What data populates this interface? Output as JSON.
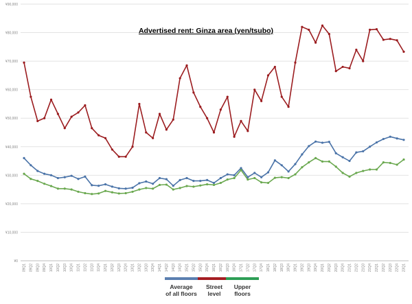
{
  "chart_data": {
    "type": "line",
    "title": "Advertised rent: Ginza area (yen/tsubo)",
    "xlabel": "",
    "ylabel": "",
    "ylim": [
      0,
      90000
    ],
    "yticks": [
      "¥0",
      "¥10,000",
      "¥20,000",
      "¥30,000",
      "¥40,000",
      "¥50,000",
      "¥60,000",
      "¥70,000",
      "¥80,000",
      "¥90,000"
    ],
    "grid": true,
    "legend": "bottom",
    "categories": [
      "09Q1",
      "09Q2",
      "09Q3",
      "09Q4",
      "10Q1",
      "10Q2",
      "10Q3",
      "10Q4",
      "11Q1",
      "11Q2",
      "11Q3",
      "11Q4",
      "12Q1",
      "12Q2",
      "12Q3",
      "12Q4",
      "13Q1",
      "13Q2",
      "13Q3",
      "13Q4",
      "14Q1",
      "14Q2",
      "14Q3",
      "14Q4",
      "15Q1",
      "15Q2",
      "15Q3",
      "15Q4",
      "16Q1",
      "16Q2",
      "16Q3",
      "16Q4",
      "17Q1",
      "17Q2",
      "17Q3",
      "17Q4",
      "18Q1",
      "18Q2",
      "18Q3",
      "18Q4",
      "19Q1",
      "19Q2",
      "19Q3",
      "19Q4",
      "20Q1",
      "20Q2",
      "20Q3",
      "20Q4",
      "21Q1",
      "21Q2",
      "21Q3",
      "21Q4",
      "22Q1",
      "22Q2",
      "22Q3",
      "22Q4",
      "23Q1"
    ],
    "series": [
      {
        "name": "Average of all floors",
        "color": "#4a73a8",
        "values": [
          36000,
          33500,
          31500,
          30500,
          30000,
          29000,
          29300,
          29800,
          28700,
          29500,
          26500,
          26300,
          26800,
          26000,
          25400,
          25300,
          25600,
          27200,
          27800,
          27000,
          29000,
          28600,
          26300,
          28300,
          29000,
          28000,
          28000,
          28300,
          27300,
          29000,
          30300,
          30000,
          32500,
          29300,
          30800,
          29300,
          31000,
          35200,
          33500,
          31300,
          33900,
          37300,
          40200,
          41800,
          41400,
          41700,
          37700,
          36300,
          35000,
          38000,
          38400,
          40000,
          41500,
          42700,
          43500,
          42900,
          42400
        ]
      },
      {
        "name": "Street level",
        "color": "#9b1c1f",
        "values": [
          69500,
          57500,
          49000,
          50000,
          56500,
          51500,
          46500,
          50500,
          52000,
          54500,
          46500,
          44000,
          43000,
          39000,
          36500,
          36500,
          40000,
          55000,
          45000,
          43000,
          51500,
          46000,
          49500,
          64000,
          68500,
          59000,
          54000,
          50000,
          45000,
          53000,
          57500,
          43500,
          49000,
          45500,
          60000,
          56000,
          65000,
          68000,
          57500,
          54000,
          69500,
          82000,
          81000,
          76500,
          82500,
          79500,
          66500,
          68000,
          67500,
          74000,
          70000,
          81000,
          81200,
          77500,
          77800,
          77300,
          73300
        ]
      },
      {
        "name": "Upper floors",
        "color": "#6aa84f",
        "values": [
          30500,
          28700,
          28000,
          27000,
          26200,
          25300,
          25300,
          25000,
          24200,
          23700,
          23400,
          23600,
          24500,
          24000,
          23600,
          23700,
          24200,
          25000,
          25500,
          25300,
          26600,
          26700,
          25000,
          25500,
          26200,
          26000,
          26400,
          26800,
          26600,
          27300,
          28500,
          29000,
          31800,
          28500,
          29000,
          27500,
          27300,
          29100,
          29300,
          29000,
          30300,
          32800,
          34500,
          36000,
          34800,
          34800,
          33000,
          30800,
          29500,
          30800,
          31500,
          32000,
          32000,
          34500,
          34300,
          33700,
          35500
        ]
      }
    ],
    "legend_labels": [
      {
        "line1": "Average",
        "line2": "of all floors",
        "color": "#4a73a8"
      },
      {
        "line1": "Street",
        "line2": "level",
        "color": "#9b1c1f"
      },
      {
        "line1": "Upper",
        "line2": "floors",
        "color": "#2e9e56"
      }
    ]
  }
}
